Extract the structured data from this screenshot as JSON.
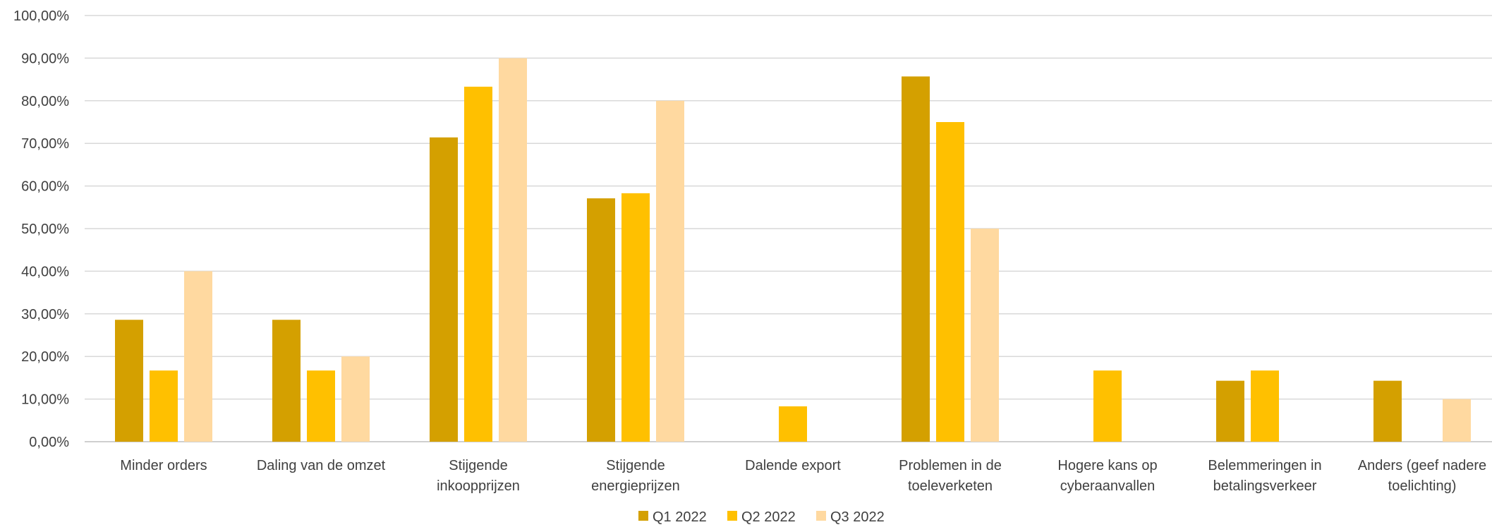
{
  "chart_data": {
    "type": "bar",
    "title": "",
    "xlabel": "",
    "ylabel": "",
    "ylim": [
      0,
      100
    ],
    "grid": true,
    "legend_position": "bottom",
    "y_ticks": [
      "0,00%",
      "10,00%",
      "20,00%",
      "30,00%",
      "40,00%",
      "50,00%",
      "60,00%",
      "70,00%",
      "80,00%",
      "90,00%",
      "100,00%"
    ],
    "categories": [
      [
        "Minder orders"
      ],
      [
        "Daling van de omzet"
      ],
      [
        "Stijgende",
        "inkoopprijzen"
      ],
      [
        "Stijgende",
        "energieprijzen"
      ],
      [
        "Dalende export"
      ],
      [
        "Problemen in de",
        "toeleverketen"
      ],
      [
        "Hogere kans op",
        "cyberaanvallen"
      ],
      [
        "Belemmeringen in",
        "betalingsverkeer"
      ],
      [
        "Anders (geef nadere",
        "toelichting)"
      ]
    ],
    "series": [
      {
        "name": "Q1 2022",
        "color": "#D4A000",
        "values": [
          28.6,
          28.6,
          71.4,
          57.1,
          0,
          85.7,
          0,
          14.3,
          14.3
        ]
      },
      {
        "name": "Q2 2022",
        "color": "#FFC000",
        "values": [
          16.7,
          16.7,
          83.3,
          58.3,
          8.3,
          75.0,
          16.7,
          16.7,
          0
        ]
      },
      {
        "name": "Q3 2022",
        "color": "#FFD9A0",
        "values": [
          40.0,
          20.0,
          90.0,
          80.0,
          0,
          50.0,
          0,
          0,
          10.0
        ]
      }
    ]
  }
}
